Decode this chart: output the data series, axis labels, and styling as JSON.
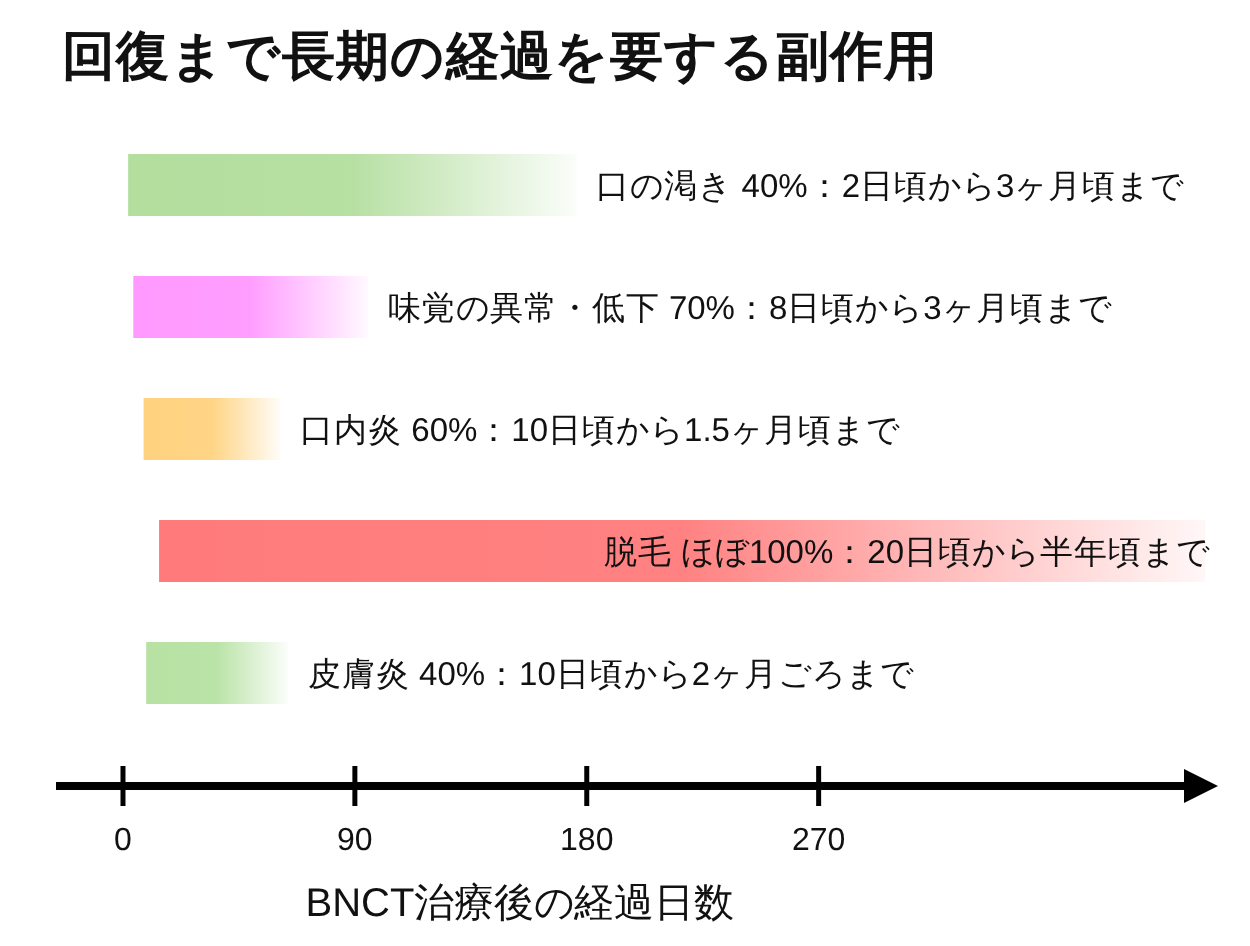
{
  "chart_data": {
    "type": "bar",
    "orientation": "horizontal",
    "title": "回復まで長期の経過を要する副作用",
    "xlabel": "BNCT治療後の経過日数",
    "categories": [
      "口の渇き 40%：2日頃から3ヶ月頃まで",
      "味覚の異常・低下 70%：8日頃から3ヶ月頃まで",
      "口内炎 60%：10日頃から1.5ヶ月頃まで",
      "脱毛 ほぼ100%：20日頃から半年頃まで",
      "皮膚炎 40%：10日頃から2ヶ月ごろまで"
    ],
    "base": [
      2,
      4,
      8,
      14,
      9
    ],
    "values": [
      174,
      91,
      53,
      406,
      55
    ],
    "colors": [
      "#b3de9e",
      "#ff99ff",
      "#ffd27f",
      "#ff7b7b",
      "#b7e2a3"
    ],
    "xlim": [
      -26,
      425
    ],
    "xticks": [
      0,
      90,
      180,
      270
    ]
  }
}
